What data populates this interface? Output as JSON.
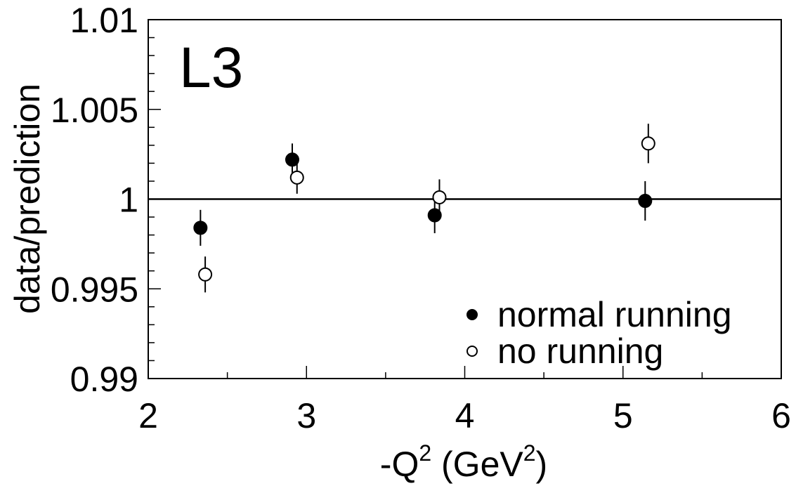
{
  "chart_data": {
    "type": "scatter",
    "title": "",
    "annotation": "L3",
    "xlabel": {
      "prefix": "-Q",
      "sup1": "2",
      "mid": " (GeV",
      "sup2": "2",
      "suffix": ")"
    },
    "ylabel": "data/prediction",
    "xlim": [
      2,
      6
    ],
    "ylim": [
      0.99,
      1.01
    ],
    "x_ticks": [
      2,
      3,
      4,
      5,
      6
    ],
    "x_tick_labels": [
      "2",
      "3",
      "4",
      "5",
      "6"
    ],
    "y_ticks": [
      0.99,
      0.995,
      1,
      1.005,
      1.01
    ],
    "y_tick_labels": [
      "0.99",
      "0.995",
      "1",
      "1.005",
      "1.01"
    ],
    "reference_line": 1,
    "legend_position": "bottom-right",
    "series": [
      {
        "name": "normal running",
        "marker": "filled-circle",
        "points": [
          {
            "x": 2.33,
            "y": 0.9984,
            "err": 0.001
          },
          {
            "x": 2.91,
            "y": 1.0022,
            "err": 0.0009
          },
          {
            "x": 3.81,
            "y": 0.9991,
            "err": 0.001
          },
          {
            "x": 5.14,
            "y": 0.9999,
            "err": 0.0011
          }
        ]
      },
      {
        "name": "no running",
        "marker": "open-circle",
        "points": [
          {
            "x": 2.36,
            "y": 0.9958,
            "err": 0.001
          },
          {
            "x": 2.94,
            "y": 1.0012,
            "err": 0.0009
          },
          {
            "x": 3.84,
            "y": 1.0001,
            "err": 0.001
          },
          {
            "x": 5.16,
            "y": 1.0031,
            "err": 0.0011
          }
        ]
      }
    ]
  }
}
